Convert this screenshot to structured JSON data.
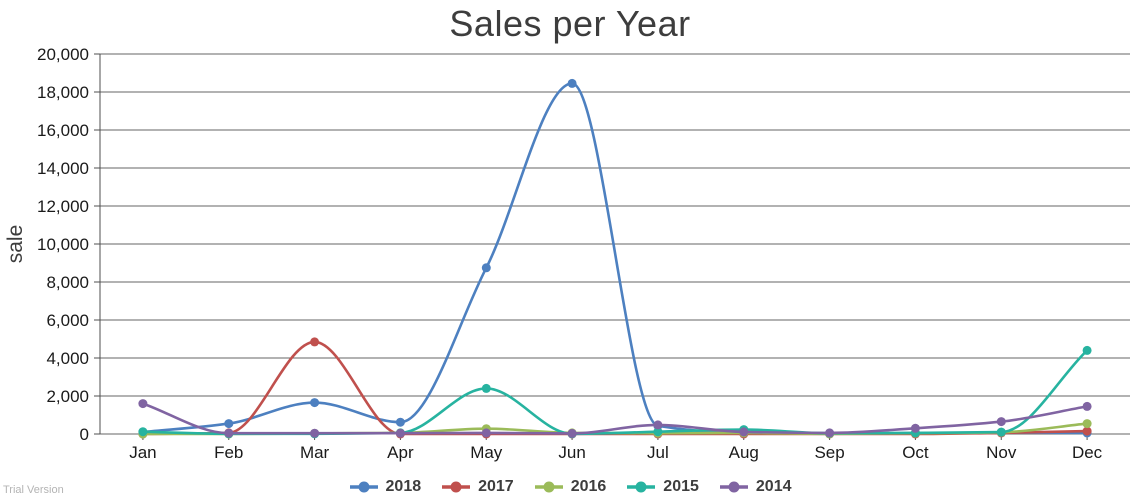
{
  "page": {
    "trial_label": "Trial Version"
  },
  "chart_data": {
    "type": "line",
    "title": "Sales per Year",
    "xlabel": "",
    "ylabel": "sale",
    "categories": [
      "Jan",
      "Feb",
      "Mar",
      "Apr",
      "May",
      "Jun",
      "Jul",
      "Aug",
      "Sep",
      "Oct",
      "Nov",
      "Dec"
    ],
    "series": [
      {
        "name": "2018",
        "color": "#4d80c0",
        "values": [
          100,
          550,
          1650,
          620,
          8750,
          18450,
          430,
          50,
          30,
          50,
          80,
          60
        ]
      },
      {
        "name": "2017",
        "color": "#c0504d",
        "values": [
          0,
          60,
          4850,
          0,
          0,
          0,
          0,
          0,
          0,
          0,
          60,
          150
        ]
      },
      {
        "name": "2016",
        "color": "#9bbb59",
        "values": [
          0,
          0,
          30,
          60,
          280,
          60,
          40,
          60,
          10,
          40,
          90,
          550
        ]
      },
      {
        "name": "2015",
        "color": "#27b3a0",
        "values": [
          120,
          10,
          10,
          60,
          2400,
          10,
          120,
          230,
          40,
          60,
          100,
          4400
        ]
      },
      {
        "name": "2014",
        "color": "#8064a2",
        "values": [
          1600,
          40,
          40,
          40,
          60,
          30,
          480,
          110,
          60,
          300,
          650,
          1450
        ]
      }
    ],
    "ylim": [
      0,
      20000
    ],
    "ytick_step": 2000,
    "grid": "horizontal",
    "legend_position": "bottom",
    "smooth": true,
    "markers": "circle",
    "colors": {
      "grid": "#646464",
      "axis": "#4f4f4f",
      "tick_label": "#1a1a1a",
      "title": "#3d3d3d"
    }
  }
}
